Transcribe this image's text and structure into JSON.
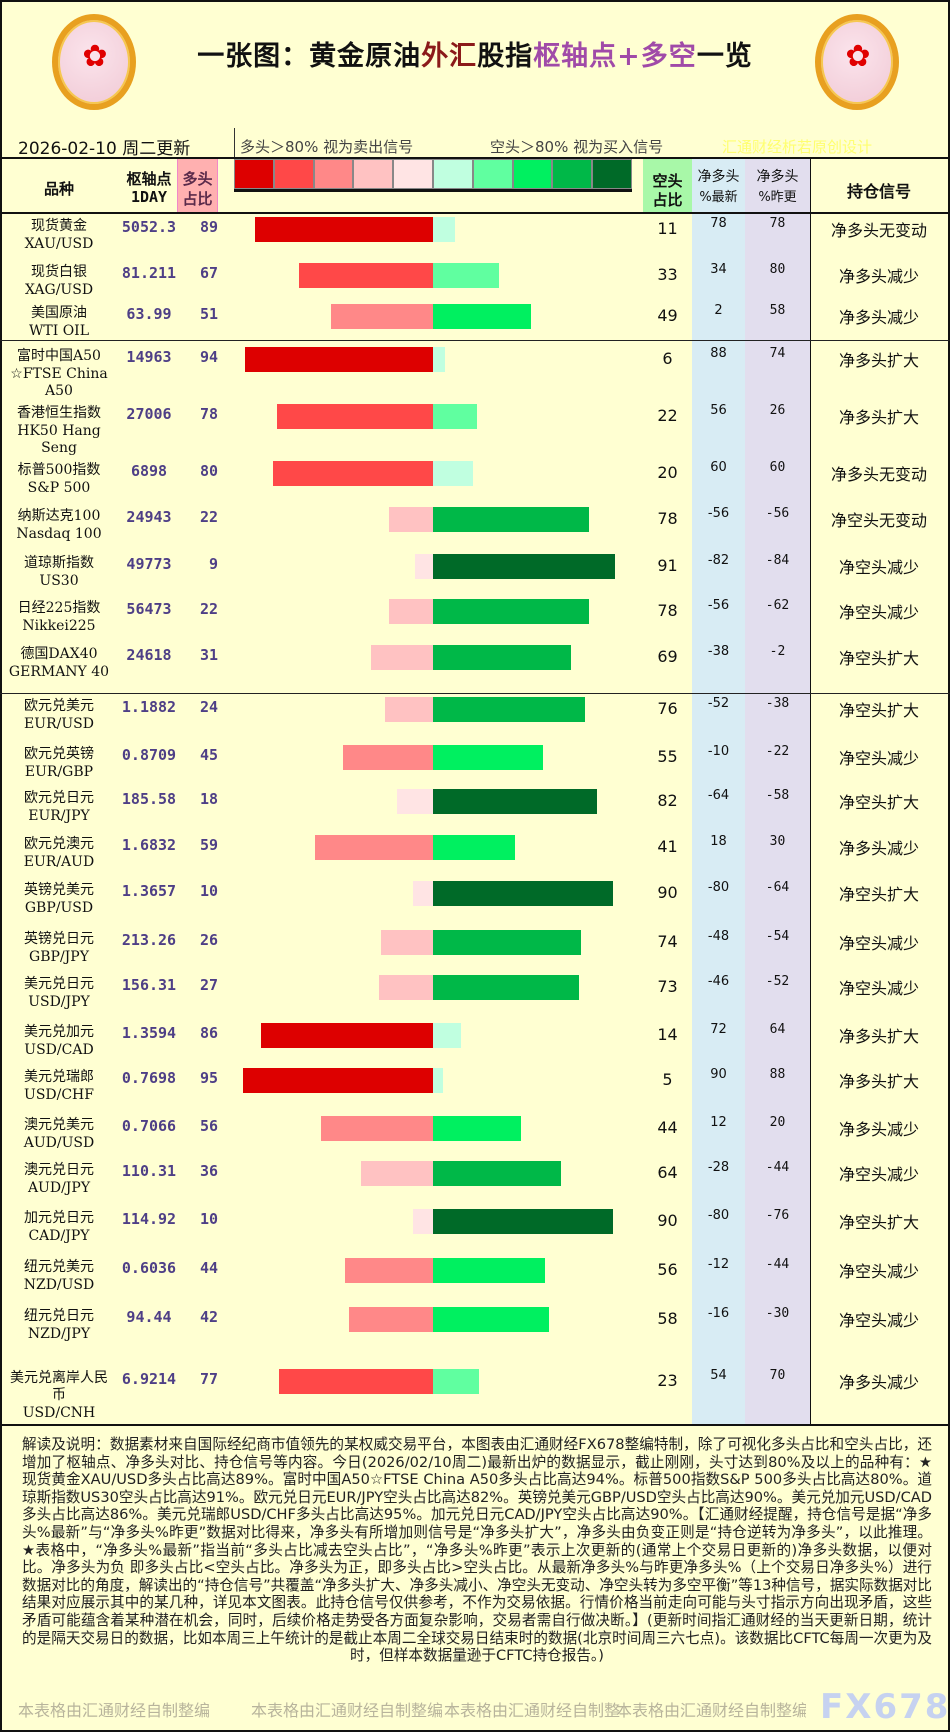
{
  "title": {
    "p1": "一张图：黄金原油",
    "p2": "外汇",
    "p3": "股指",
    "p4": "枢轴点+多空",
    "p5": "一览"
  },
  "update_date": "2026-02-10 周二更新",
  "legend": {
    "long_note": "多头＞80% 视为卖出信号",
    "short_note": "空头＞80% 视为买入信号",
    "credit": "汇通财经析若原创设计",
    "colors_long": [
      "#dd0000",
      "#ff4848",
      "#ff8888",
      "#ffc2c2",
      "#ffe4e4"
    ],
    "colors_short": [
      "#c0ffe0",
      "#60ffa0",
      "#00f060",
      "#00b848",
      "#006a28"
    ]
  },
  "headers": {
    "variety": "品种",
    "pivot": "枢轴点",
    "pivot_sub": "1DAY",
    "long": "多头",
    "long_sub": "占比",
    "short": "空头",
    "short_sub": "占比",
    "net_latest": "净多头",
    "net_latest_sub": "%最新",
    "net_prev": "净多头",
    "net_prev_sub": "%昨更",
    "signal": "持仓信号"
  },
  "rows": [
    {
      "cn": "现货黄金",
      "en": "XAU/USD",
      "pivot": "5052.3",
      "long": 89,
      "short": 11,
      "net_latest": "78",
      "net_prev": "78",
      "signal": "净多头无变动"
    },
    {
      "cn": "现货白银",
      "en": "XAG/USD",
      "pivot": "81.211",
      "long": 67,
      "short": 33,
      "net_latest": "34",
      "net_prev": "80",
      "signal": "净多头减少"
    },
    {
      "cn": "美国原油",
      "en": "WTI OIL",
      "pivot": "63.99",
      "long": 51,
      "short": 49,
      "net_latest": "2",
      "net_prev": "58",
      "signal": "净多头减少"
    },
    {
      "cn": "富时中国A50",
      "en": "☆FTSE China A50",
      "pivot": "14963",
      "long": 94,
      "short": 6,
      "net_latest": "88",
      "net_prev": "74",
      "signal": "净多头扩大"
    },
    {
      "cn": "香港恒生指数",
      "en": "HK50 Hang Seng",
      "pivot": "27006",
      "long": 78,
      "short": 22,
      "net_latest": "56",
      "net_prev": "26",
      "signal": "净多头扩大"
    },
    {
      "cn": "标普500指数",
      "en": "S&P 500",
      "pivot": "6898",
      "long": 80,
      "short": 20,
      "net_latest": "60",
      "net_prev": "60",
      "signal": "净多头无变动"
    },
    {
      "cn": "纳斯达克100",
      "en": "Nasdaq 100",
      "pivot": "24943",
      "long": 22,
      "short": 78,
      "net_latest": "-56",
      "net_prev": "-56",
      "signal": "净空头无变动"
    },
    {
      "cn": "道琼斯指数",
      "en": "US30",
      "pivot": "49773",
      "long": 9,
      "short": 91,
      "net_latest": "-82",
      "net_prev": "-84",
      "signal": "净空头减少"
    },
    {
      "cn": "日经225指数",
      "en": "Nikkei225",
      "pivot": "56473",
      "long": 22,
      "short": 78,
      "net_latest": "-56",
      "net_prev": "-62",
      "signal": "净空头减少"
    },
    {
      "cn": "德国DAX40",
      "en": "GERMANY 40",
      "pivot": "24618",
      "long": 31,
      "short": 69,
      "net_latest": "-38",
      "net_prev": "-2",
      "signal": "净空头扩大"
    },
    {
      "cn": "欧元兑美元",
      "en": "EUR/USD",
      "pivot": "1.1882",
      "long": 24,
      "short": 76,
      "net_latest": "-52",
      "net_prev": "-38",
      "signal": "净空头扩大"
    },
    {
      "cn": "欧元兑英镑",
      "en": "EUR/GBP",
      "pivot": "0.8709",
      "long": 45,
      "short": 55,
      "net_latest": "-10",
      "net_prev": "-22",
      "signal": "净空头减少"
    },
    {
      "cn": "欧元兑日元",
      "en": "EUR/JPY",
      "pivot": "185.58",
      "long": 18,
      "short": 82,
      "net_latest": "-64",
      "net_prev": "-58",
      "signal": "净空头扩大"
    },
    {
      "cn": "欧元兑澳元",
      "en": "EUR/AUD",
      "pivot": "1.6832",
      "long": 59,
      "short": 41,
      "net_latest": "18",
      "net_prev": "30",
      "signal": "净多头减少"
    },
    {
      "cn": "英镑兑美元",
      "en": "GBP/USD",
      "pivot": "1.3657",
      "long": 10,
      "short": 90,
      "net_latest": "-80",
      "net_prev": "-64",
      "signal": "净空头扩大"
    },
    {
      "cn": "英镑兑日元",
      "en": "GBP/JPY",
      "pivot": "213.26",
      "long": 26,
      "short": 74,
      "net_latest": "-48",
      "net_prev": "-54",
      "signal": "净空头减少"
    },
    {
      "cn": "美元兑日元",
      "en": "USD/JPY",
      "pivot": "156.31",
      "long": 27,
      "short": 73,
      "net_latest": "-46",
      "net_prev": "-52",
      "signal": "净空头减少"
    },
    {
      "cn": "美元兑加元",
      "en": "USD/CAD",
      "pivot": "1.3594",
      "long": 86,
      "short": 14,
      "net_latest": "72",
      "net_prev": "64",
      "signal": "净多头扩大"
    },
    {
      "cn": "美元兑瑞郎",
      "en": "USD/CHF",
      "pivot": "0.7698",
      "long": 95,
      "short": 5,
      "net_latest": "90",
      "net_prev": "88",
      "signal": "净多头扩大"
    },
    {
      "cn": "澳元兑美元",
      "en": "AUD/USD",
      "pivot": "0.7066",
      "long": 56,
      "short": 44,
      "net_latest": "12",
      "net_prev": "20",
      "signal": "净多头减少"
    },
    {
      "cn": "澳元兑日元",
      "en": "AUD/JPY",
      "pivot": "110.31",
      "long": 36,
      "short": 64,
      "net_latest": "-28",
      "net_prev": "-44",
      "signal": "净空头减少"
    },
    {
      "cn": "加元兑日元",
      "en": "CAD/JPY",
      "pivot": "114.92",
      "long": 10,
      "short": 90,
      "net_latest": "-80",
      "net_prev": "-76",
      "signal": "净空头扩大"
    },
    {
      "cn": "纽元兑美元",
      "en": "NZD/USD",
      "pivot": "0.6036",
      "long": 44,
      "short": 56,
      "net_latest": "-12",
      "net_prev": "-44",
      "signal": "净空头减少"
    },
    {
      "cn": "纽元兑日元",
      "en": "NZD/JPY",
      "pivot": "94.44",
      "long": 42,
      "short": 58,
      "net_latest": "-16",
      "net_prev": "-30",
      "signal": "净空头减少"
    },
    {
      "cn": "美元兑离岸人民币",
      "en": "USD/CNH",
      "pivot": "6.9214",
      "long": 77,
      "short": 23,
      "net_latest": "54",
      "net_prev": "70",
      "signal": "净多头减少"
    }
  ],
  "footer": {
    "text": "解读及说明：数据素材来自国际经纪商市值领先的某权威交易平台，本图表由汇通财经FX678整编特制，除了可视化多头占比和空头占比，还增加了枢轴点、净多头对比、持仓信号等内容。今日(2026/02/10周二)最新出炉的数据显示，截止刚刚，头寸达到80%及以上的品种有：★ 现货黄金XAU/USD多头占比高达89%。富时中国A50☆FTSE China A50多头占比高达94%。标普500指数S&P 500多头占比高达80%。道琼斯指数US30空头占比高达91%。欧元兑日元EUR/JPY空头占比高达82%。英镑兑美元GBP/USD空头占比高达90%。美元兑加元USD/CAD多头占比高达86%。美元兑瑞郎USD/CHF多头占比高达95%。加元兑日元CAD/JPY空头占比高达90%。【汇通财经提醒，持仓信号是据“净多头%最新”与“净多头%昨更”数据对比得来，净多头有所增加则信号是“净多头扩大”，净多头由负变正则是“持仓逆转为净多头”，以此推理。★表格中，“净多头%最新”指当前“多头占比减去空头占比”，“净多头%昨更”表示上次更新的(通常上个交易日更新的)净多头数据，以便对比。净多头为负 即多头占比<空头占比。净多头为正，即多头占比>空头占比。从最新净多头%与昨更净多头%（上个交易日净多头%）进行数据对比的角度，解读出的“持仓信号”共覆盖“净多头扩大、净多头减小、净空头无变动、净空头转为多空平衡”等13种信号，据实际数据对比结果对应展示其中的某几种，详见本文图表。此持仓信号仅供参考，不作为交易依据。行情价格当前走向可能与头寸指示方向出现矛盾，这些矛盾可能蕴含着某种潜在机会，同时，后续价格走势受各方面复杂影响，交易者需自行做决断。】(更新时间指汇通财经的当天更新日期，统计的是隔天交易日的数据，比如本周三上午统计的是截止本周二全球交易日结束时的数据(北京时间周三六七点)。该数据比CFTC每周一次更为及时，但样本数据量逊于CFTC持仓报告。)",
    "watermarks": [
      "本表格由汇通财经自制整编",
      "本表格由汇通财经自制整编",
      "本表格由汇通财经自制整",
      "本表格由汇通财经自制整编"
    ],
    "brand": "FX678"
  }
}
